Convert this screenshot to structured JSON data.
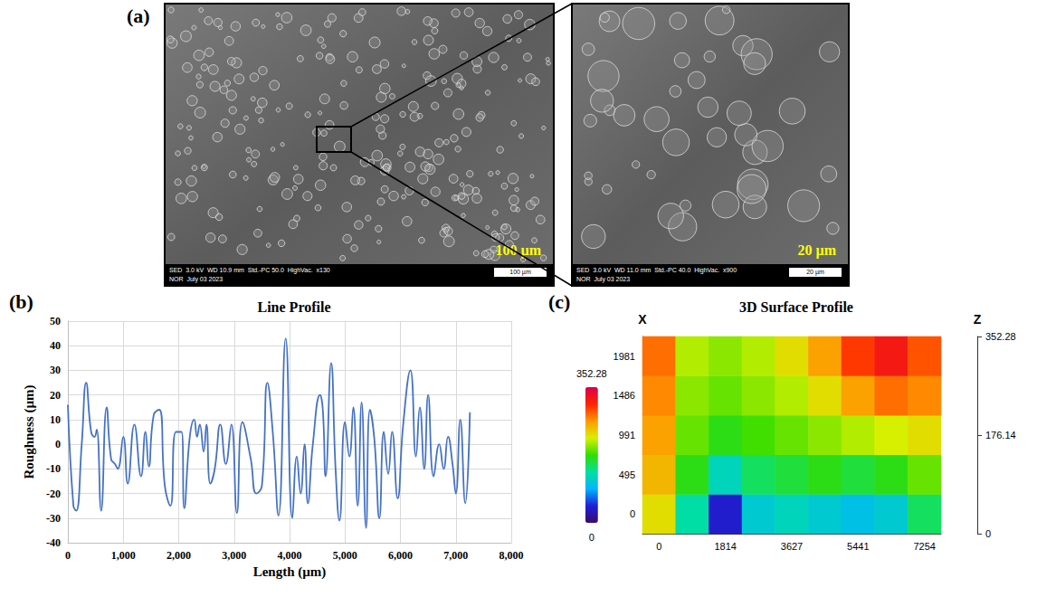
{
  "sem_images": [
    {
      "panel": "(a)",
      "info": [
        "SED  3.0 kV  WD 10.9 mm  Std.-PC 50.0  HighVac.  x130",
        "NOR  July 03 2023"
      ],
      "scale_bar": "100 µm",
      "label": "100 µm"
    },
    {
      "info": [
        "SED  3.0 kV  WD 11.0 mm  Std.-PC 40.0  HighVac.  x900",
        "NOR  July 03 2023"
      ],
      "scale_bar": "20 µm",
      "label": "20 µm"
    }
  ],
  "chart_data": [
    {
      "panel": "(b)",
      "type": "line",
      "title": "Line Profile",
      "x_label": "Length (µm)",
      "y_label": "Roughness (µm)",
      "x": [
        0,
        100,
        150,
        250,
        330,
        420,
        480,
        520,
        600,
        700,
        780,
        850,
        900,
        1000,
        1080,
        1200,
        1320,
        1400,
        1460,
        1550,
        1650,
        1750,
        1850,
        1950,
        2050,
        2100,
        2200,
        2280,
        2330,
        2380,
        2450,
        2500,
        2570,
        2650,
        2750,
        2850,
        2950,
        3050,
        3150,
        3300,
        3400,
        3500,
        3600,
        3700,
        3800,
        3930,
        4050,
        4130,
        4200,
        4270,
        4330,
        4420,
        4550,
        4600,
        4650,
        4750,
        4830,
        4900,
        5000,
        5080,
        5150,
        5230,
        5300,
        5380,
        5450,
        5530,
        5620,
        5700,
        5780,
        5850,
        5950,
        6050,
        6180,
        6280,
        6350,
        6430,
        6500,
        6600,
        6700,
        6780,
        6860,
        6940,
        7000,
        7080,
        7170,
        7254
      ],
      "values": [
        16,
        -25,
        -27,
        0,
        25,
        5,
        3,
        6,
        -27,
        15,
        -6,
        -8,
        -10,
        3,
        -16,
        8,
        -13,
        5,
        -9,
        12,
        14,
        -17,
        -25,
        5,
        5,
        -26,
        3,
        10,
        3,
        8,
        -3,
        8,
        -16,
        -10,
        8,
        -8,
        8,
        -28,
        9,
        -6,
        -20,
        -17,
        25,
        4,
        -29,
        43,
        -30,
        -5,
        -20,
        0,
        -24,
        0,
        20,
        14,
        -13,
        33,
        -10,
        -31,
        9,
        -5,
        15,
        -25,
        17,
        -34,
        14,
        2,
        -30,
        5,
        -12,
        5,
        -22,
        8,
        30,
        -5,
        15,
        -10,
        20,
        -13,
        0,
        -10,
        3,
        -8,
        -20,
        10,
        -24,
        13
      ],
      "color": "#4472c4",
      "xlim": [
        0,
        8000
      ],
      "xticks": [
        0,
        1000,
        2000,
        3000,
        4000,
        5000,
        6000,
        7000,
        8000
      ],
      "ylim": [
        -40,
        50
      ],
      "yticks": [
        -40,
        -30,
        -20,
        -10,
        0,
        10,
        20,
        30,
        40,
        50
      ],
      "grid": true
    },
    {
      "panel": "(c)",
      "type": "surface",
      "title": "3D Surface Profile",
      "y_label": "X",
      "z_label": "Z",
      "x": [
        0,
        907,
        1814,
        2720,
        3627,
        4534,
        5441,
        6347,
        7254
      ],
      "y": [
        0,
        495,
        991,
        1486,
        1981
      ],
      "z": [
        [
          230,
          130,
          40,
          110,
          120,
          110,
          100,
          110,
          150
        ],
        [
          250,
          170,
          120,
          150,
          160,
          170,
          160,
          170,
          190
        ],
        [
          260,
          190,
          170,
          180,
          190,
          200,
          210,
          220,
          230
        ],
        [
          270,
          200,
          190,
          200,
          210,
          230,
          260,
          280,
          270
        ],
        [
          280,
          210,
          200,
          210,
          230,
          260,
          300,
          320,
          290
        ]
      ],
      "xticks": [
        0,
        1814,
        3627,
        5441,
        7254
      ],
      "yticks": [
        0,
        495,
        991,
        1486,
        1981
      ],
      "zlim": [
        0,
        352.28
      ],
      "zticks": [
        0,
        176.14,
        352.28
      ]
    }
  ]
}
